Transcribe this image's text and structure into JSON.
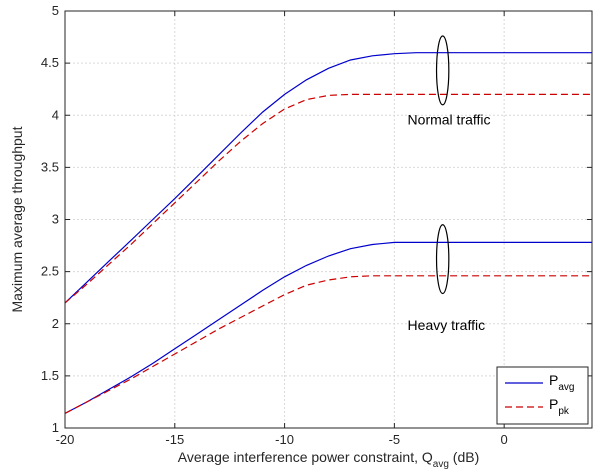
{
  "chart_data": {
    "type": "line",
    "title": "",
    "xlabel": "Average interference power constraint, Q",
    "xlabel_sub": "avg",
    "xlabel_unit": " (dB)",
    "ylabel": "Maximum average throughput",
    "xlim": [
      -20,
      4
    ],
    "ylim": [
      1,
      5
    ],
    "xticks": [
      -20,
      -15,
      -10,
      -5,
      0
    ],
    "yticks": [
      1,
      1.5,
      2,
      2.5,
      3,
      3.5,
      4,
      4.5,
      5
    ],
    "xtick_labels": [
      "-20",
      "-15",
      "-10",
      "-5",
      "0"
    ],
    "ytick_labels": [
      "1",
      "1.5",
      "2",
      "2.5",
      "3",
      "3.5",
      "4",
      "4.5",
      "5"
    ],
    "grid": true,
    "legend_position": "bottom-right",
    "series": [
      {
        "name": "P",
        "name_sub": "avg",
        "color": "#0000cc",
        "dash": "solid",
        "group": "Normal traffic",
        "x": [
          -20,
          -19,
          -18,
          -17,
          -16,
          -15,
          -14,
          -13,
          -12,
          -11,
          -10,
          -9,
          -8,
          -7,
          -6,
          -5,
          -4,
          -3,
          -2.5,
          -2,
          -1,
          0,
          1,
          2,
          3,
          4
        ],
        "y": [
          2.2,
          2.4,
          2.6,
          2.8,
          3.0,
          3.2,
          3.41,
          3.62,
          3.83,
          4.03,
          4.2,
          4.34,
          4.45,
          4.53,
          4.57,
          4.59,
          4.6,
          4.6,
          4.6,
          4.6,
          4.6,
          4.6,
          4.6,
          4.6,
          4.6,
          4.6
        ]
      },
      {
        "name": "P",
        "name_sub": "pk",
        "color": "#cc0000",
        "dash": "dashed",
        "group": "Normal traffic",
        "x": [
          -20,
          -19,
          -18,
          -17,
          -16,
          -15,
          -14,
          -13,
          -12,
          -11,
          -10,
          -9,
          -8,
          -7,
          -6,
          -5,
          -4,
          -3,
          -2,
          -1,
          0,
          1,
          2,
          3,
          4
        ],
        "y": [
          2.2,
          2.38,
          2.57,
          2.76,
          2.96,
          3.16,
          3.36,
          3.56,
          3.75,
          3.92,
          4.06,
          4.15,
          4.19,
          4.2,
          4.2,
          4.2,
          4.2,
          4.2,
          4.2,
          4.2,
          4.2,
          4.2,
          4.2,
          4.2,
          4.2
        ]
      },
      {
        "name": "P",
        "name_sub": "avg",
        "color": "#0000cc",
        "dash": "solid",
        "group": "Heavy traffic",
        "x": [
          -20,
          -19,
          -18,
          -17,
          -16,
          -15,
          -14,
          -13,
          -12,
          -11,
          -10,
          -9,
          -8,
          -7,
          -6,
          -5,
          -4,
          -3,
          -2,
          -1,
          0,
          1,
          2,
          3,
          4
        ],
        "y": [
          1.14,
          1.25,
          1.37,
          1.49,
          1.62,
          1.76,
          1.9,
          2.04,
          2.18,
          2.32,
          2.45,
          2.56,
          2.65,
          2.72,
          2.76,
          2.78,
          2.78,
          2.78,
          2.78,
          2.78,
          2.78,
          2.78,
          2.78,
          2.78,
          2.78
        ]
      },
      {
        "name": "P",
        "name_sub": "pk",
        "color": "#cc0000",
        "dash": "dashed",
        "group": "Heavy traffic",
        "x": [
          -20,
          -19,
          -18,
          -17,
          -16,
          -15,
          -14,
          -13,
          -12,
          -11,
          -10,
          -9,
          -8,
          -7,
          -6,
          -5,
          -4,
          -3,
          -2,
          -1,
          0,
          1,
          2,
          3,
          4
        ],
        "y": [
          1.14,
          1.25,
          1.36,
          1.47,
          1.59,
          1.71,
          1.83,
          1.95,
          2.06,
          2.17,
          2.28,
          2.37,
          2.42,
          2.45,
          2.46,
          2.46,
          2.46,
          2.46,
          2.46,
          2.46,
          2.46,
          2.46,
          2.46,
          2.46,
          2.46
        ]
      }
    ],
    "annotations": [
      {
        "text": "Normal traffic",
        "x": -4.4,
        "y": 3.91,
        "ellipse_center": [
          -2.8,
          4.43
        ],
        "ellipse_rx": 0.28,
        "ellipse_ry": 0.33
      },
      {
        "text": "Heavy traffic",
        "x": -4.4,
        "y": 1.94,
        "ellipse_center": [
          -2.8,
          2.62
        ],
        "ellipse_rx": 0.28,
        "ellipse_ry": 0.33
      }
    ],
    "legend": [
      {
        "label": "P",
        "sub": "avg",
        "color": "#0000cc",
        "dash": "solid"
      },
      {
        "label": "P",
        "sub": "pk",
        "color": "#cc0000",
        "dash": "dashed"
      }
    ]
  }
}
